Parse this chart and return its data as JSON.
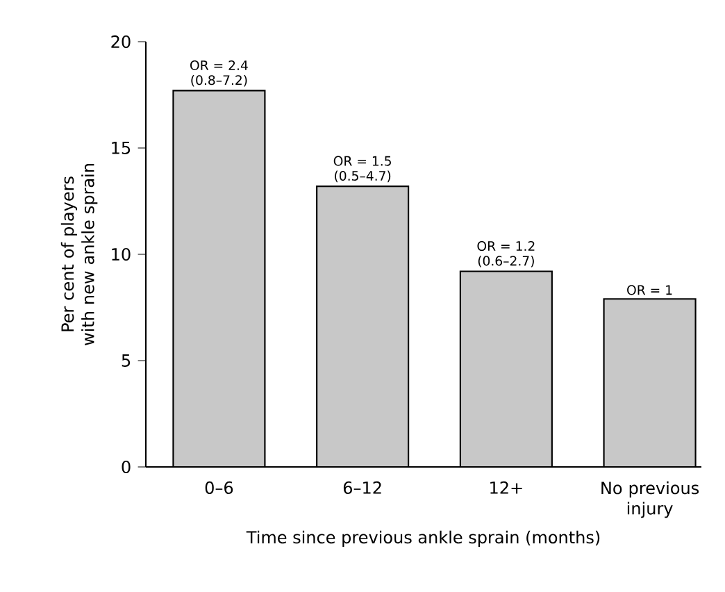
{
  "chart_data": {
    "type": "bar",
    "xlabel": "Time since previous ankle sprain (months)",
    "ylabel": "Per cent of players with new ankle sprain",
    "categories": [
      "0–6",
      "6–12",
      "12+",
      "No previous injury"
    ],
    "values": [
      17.7,
      13.2,
      9.2,
      7.9
    ],
    "color": "#c8c8c8",
    "ylim": [
      0,
      20
    ],
    "yticks": [
      0,
      5,
      10,
      15,
      20
    ],
    "annotations": [
      {
        "text": "OR = 2.4",
        "x": "0–6",
        "y": 17.7
      },
      {
        "text": "(0.8–7.2)",
        "x": "0–6",
        "y": 17.7
      },
      {
        "text": "OR = 1.5",
        "x": "6–12",
        "y": 13.2
      },
      {
        "text": "(0.5–4.7)",
        "x": "6–12",
        "y": 13.2
      },
      {
        "text": "OR = 1.2",
        "x": "12+",
        "y": 9.2
      },
      {
        "text": "(0.6–2.7)",
        "x": "12+",
        "y": 9.2
      },
      {
        "text": "OR = 1",
        "x": "No previous injury",
        "y": 7.9
      }
    ]
  }
}
